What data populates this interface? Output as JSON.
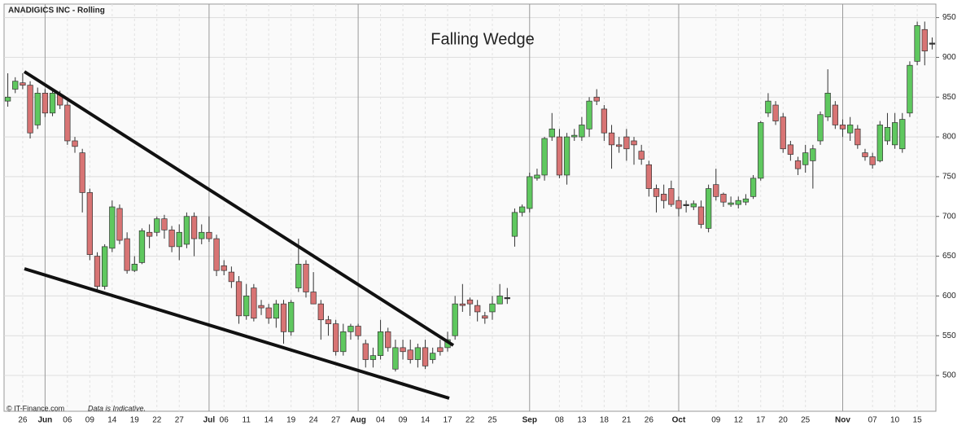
{
  "chart_data": {
    "type": "candlestick",
    "title": "ANADIGICS INC - Rolling",
    "annotation": "Falling Wedge",
    "footer": "© IT-Finance.com",
    "note": "Data is Indicative.",
    "categories": [
      null,
      null,
      "26",
      null,
      null,
      "Jun",
      null,
      null,
      "06",
      null,
      null,
      "09",
      null,
      null,
      "14",
      null,
      null,
      "19",
      null,
      null,
      "22",
      null,
      null,
      "27",
      null,
      null,
      null,
      "Jul",
      null,
      "06",
      null,
      null,
      "11",
      null,
      null,
      "14",
      null,
      null,
      "19",
      null,
      null,
      "24",
      null,
      null,
      "27",
      null,
      null,
      "Aug",
      null,
      null,
      "04",
      null,
      null,
      "09",
      null,
      null,
      "14",
      null,
      null,
      "17",
      null,
      null,
      "22",
      null,
      null,
      "25",
      null,
      null,
      null,
      null,
      "Sep",
      null,
      null,
      null,
      "08",
      null,
      null,
      "13",
      null,
      null,
      "18",
      null,
      null,
      "21",
      null,
      null,
      "26",
      null,
      null,
      null,
      "Oct",
      null,
      null,
      null,
      null,
      "09",
      null,
      null,
      "12",
      null,
      null,
      "17",
      null,
      null,
      "20",
      null,
      null,
      "25",
      null,
      null,
      null,
      null,
      "Nov",
      null,
      null,
      null,
      "07",
      null,
      null,
      "10",
      null,
      null,
      "15",
      null,
      null
    ],
    "open": [
      845,
      860,
      868,
      865,
      815,
      855,
      830,
      853,
      840,
      795,
      780,
      730,
      650,
      612,
      660,
      710,
      672,
      632,
      642,
      680,
      680,
      697,
      683,
      662,
      665,
      700,
      672,
      680,
      672,
      638,
      630,
      618,
      575,
      610,
      588,
      585,
      572,
      590,
      555,
      610,
      640,
      605,
      590,
      570,
      565,
      530,
      555,
      562,
      540,
      520,
      525,
      555,
      508,
      535,
      532,
      520,
      535,
      520,
      535,
      535,
      550,
      590,
      595,
      588,
      575,
      580,
      590,
      598,
      675,
      705,
      710,
      748,
      752,
      800,
      800,
      752,
      800,
      800,
      810,
      850,
      835,
      805,
      790,
      800,
      795,
      782,
      765,
      735,
      728,
      735,
      720,
      715,
      712,
      712,
      685,
      740,
      728,
      715,
      715,
      718,
      725,
      748,
      830,
      840,
      825,
      790,
      770,
      765,
      770,
      795,
      825,
      840,
      815,
      805,
      810,
      780,
      775,
      770,
      795,
      790,
      785,
      830,
      895,
      935,
      918
    ],
    "high": [
      880,
      875,
      880,
      870,
      862,
      860,
      860,
      858,
      845,
      800,
      785,
      735,
      655,
      665,
      720,
      715,
      680,
      650,
      685,
      690,
      700,
      702,
      688,
      690,
      705,
      705,
      690,
      700,
      677,
      645,
      637,
      625,
      615,
      615,
      595,
      590,
      595,
      595,
      595,
      672,
      645,
      630,
      595,
      575,
      570,
      565,
      565,
      565,
      545,
      535,
      570,
      560,
      545,
      545,
      545,
      540,
      545,
      535,
      545,
      555,
      600,
      615,
      598,
      595,
      580,
      600,
      615,
      610,
      710,
      715,
      755,
      760,
      800,
      830,
      810,
      805,
      810,
      825,
      850,
      860,
      840,
      815,
      800,
      810,
      800,
      790,
      770,
      740,
      740,
      745,
      725,
      720,
      720,
      720,
      740,
      760,
      730,
      725,
      725,
      728,
      752,
      820,
      855,
      845,
      830,
      795,
      775,
      790,
      790,
      832,
      885,
      845,
      822,
      825,
      815,
      785,
      780,
      820,
      830,
      830,
      830,
      895,
      945,
      945,
      925
    ],
    "low": [
      838,
      855,
      860,
      798,
      810,
      825,
      826,
      835,
      790,
      780,
      705,
      645,
      605,
      608,
      655,
      665,
      628,
      630,
      640,
      660,
      675,
      672,
      655,
      645,
      660,
      650,
      665,
      668,
      625,
      626,
      610,
      565,
      570,
      568,
      576,
      565,
      560,
      540,
      550,
      605,
      598,
      590,
      545,
      550,
      525,
      525,
      545,
      545,
      510,
      510,
      520,
      530,
      505,
      520,
      515,
      510,
      508,
      515,
      525,
      530,
      545,
      580,
      575,
      568,
      565,
      570,
      590,
      590,
      662,
      700,
      705,
      745,
      745,
      795,
      748,
      740,
      795,
      795,
      800,
      840,
      795,
      760,
      780,
      770,
      765,
      765,
      725,
      705,
      710,
      712,
      700,
      705,
      708,
      685,
      680,
      720,
      712,
      712,
      710,
      714,
      722,
      745,
      825,
      815,
      780,
      770,
      752,
      755,
      735,
      790,
      820,
      810,
      800,
      795,
      785,
      770,
      760,
      768,
      790,
      785,
      780,
      825,
      890,
      890,
      910
    ],
    "close": [
      850,
      870,
      865,
      805,
      855,
      830,
      855,
      840,
      795,
      788,
      730,
      652,
      612,
      662,
      712,
      670,
      632,
      640,
      682,
      675,
      697,
      683,
      662,
      680,
      700,
      672,
      680,
      672,
      632,
      632,
      618,
      575,
      600,
      572,
      585,
      572,
      590,
      555,
      592,
      640,
      605,
      590,
      570,
      565,
      530,
      555,
      562,
      550,
      520,
      525,
      555,
      535,
      535,
      530,
      520,
      535,
      512,
      528,
      530,
      545,
      590,
      588,
      590,
      580,
      572,
      590,
      600,
      598,
      705,
      712,
      750,
      752,
      798,
      810,
      752,
      800,
      802,
      815,
      845,
      845,
      805,
      790,
      788,
      785,
      790,
      772,
      735,
      725,
      720,
      715,
      710,
      715,
      716,
      690,
      735,
      725,
      718,
      717,
      720,
      722,
      748,
      818,
      845,
      820,
      785,
      778,
      760,
      780,
      785,
      828,
      855,
      815,
      810,
      815,
      790,
      775,
      765,
      815,
      812,
      818,
      822,
      890,
      940,
      908,
      918
    ],
    "up_color": "#5fc85f",
    "down_color": "#d87474",
    "ylim": [
      455,
      967
    ],
    "yticks": [
      500,
      550,
      600,
      650,
      700,
      750,
      800,
      850,
      900,
      950
    ],
    "grid": true
  }
}
